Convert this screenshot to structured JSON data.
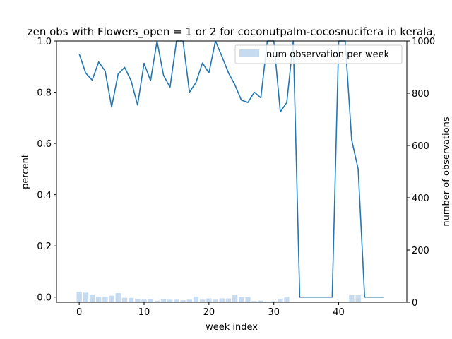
{
  "chart_data": {
    "type": "line",
    "title": "zen obs with Flowers_open = 1 or 2 for coconutpalm-cocosnucifera in kerala,",
    "xlabel": "week index",
    "ylabel": "percent",
    "y2label": "number of observations",
    "xlim": [
      -3.5,
      50.5
    ],
    "ylim": [
      -0.02,
      1.0
    ],
    "y2lim": [
      0,
      1000
    ],
    "xticks": [
      0,
      10,
      20,
      30,
      40
    ],
    "yticks": [
      0.0,
      0.2,
      0.4,
      0.6,
      0.8,
      1.0
    ],
    "y2ticks": [
      0,
      200,
      400,
      600,
      800,
      1000
    ],
    "line_color": "#1f77b4",
    "bar_color": "#c6dbef",
    "legend_position": "top-right",
    "series": [
      {
        "axis": "left",
        "kind": "line",
        "x": [
          0,
          1,
          2,
          3,
          4,
          5,
          6,
          7,
          8,
          9,
          10,
          11,
          12,
          13,
          14,
          15,
          16,
          17,
          18,
          19,
          20,
          21,
          22,
          23,
          24,
          25,
          26,
          27,
          28,
          29,
          30,
          31,
          32,
          33,
          34,
          35,
          36,
          37,
          38,
          39,
          40,
          41,
          42,
          43,
          44,
          45,
          46,
          47
        ],
        "values": [
          0.95,
          0.875,
          0.847,
          0.918,
          0.883,
          0.742,
          0.871,
          0.897,
          0.845,
          0.75,
          0.913,
          0.845,
          1.0,
          0.866,
          0.819,
          1.0,
          1.0,
          0.8,
          0.838,
          0.914,
          0.875,
          1.0,
          0.94,
          0.876,
          0.829,
          0.769,
          0.76,
          0.8,
          0.778,
          1.0,
          1.0,
          0.723,
          0.76,
          1.0,
          0.0,
          0.0,
          0.0,
          0.0,
          0.0,
          0.0,
          1.0,
          1.0,
          0.614,
          0.5,
          0.0,
          0.0,
          0.0,
          0.0
        ]
      },
      {
        "axis": "right",
        "kind": "bar",
        "name": "num observation per week",
        "x": [
          0,
          1,
          2,
          3,
          4,
          5,
          6,
          7,
          8,
          9,
          10,
          11,
          12,
          13,
          14,
          15,
          16,
          17,
          18,
          19,
          20,
          21,
          22,
          23,
          24,
          25,
          26,
          27,
          28,
          29,
          30,
          31,
          32,
          33,
          34,
          35,
          36,
          37,
          38,
          39,
          40,
          41,
          42,
          43,
          44,
          45,
          46,
          47
        ],
        "values": [
          40,
          37,
          30,
          22,
          22,
          25,
          35,
          17,
          17,
          13,
          10,
          12,
          6,
          12,
          10,
          10,
          8,
          10,
          22,
          10,
          15,
          10,
          15,
          15,
          27,
          20,
          20,
          5,
          6,
          3,
          4,
          13,
          21,
          0,
          0,
          0,
          0,
          0,
          0,
          0,
          0,
          0,
          27,
          27,
          0,
          0,
          0,
          0
        ]
      }
    ]
  }
}
